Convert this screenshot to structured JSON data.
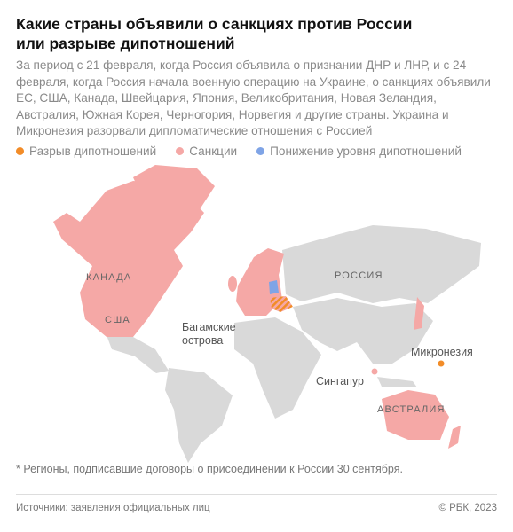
{
  "header": {
    "title": "Какие страны объявили о санкциях против России или разрыве дипотношений",
    "description": "За период с 21 февраля, когда Россия объявила о признании ДНР и ЛНР, и с 24 февраля, когда Россия начала военную операцию на Украине, о санкциях объявили ЕС, США, Канада, Швейцария, Япония, Великобритания, Новая Зеландия, Австралия, Южная Корея, Черногория, Норвегия и другие страны. Украина и Микронезия разорвали дипломатические отношения с Россией"
  },
  "legend": [
    {
      "label": "Разрыв дипотношений",
      "color": "#f28c28"
    },
    {
      "label": "Санкции",
      "color": "#f5a8a6"
    },
    {
      "label": "Понижение уровня дипотношений",
      "color": "#7fa4e6"
    }
  ],
  "map": {
    "labels": [
      "КАНАДА",
      "США",
      "Багамские острова",
      "РОССИЯ",
      "Микронезия",
      "Сингапур",
      "АВСТРАЛИЯ"
    ]
  },
  "footnote": "* Регионы, подписавшие договоры о присоединении к России 30 сентября.",
  "footer": {
    "source": "Источники: заявления официальных лиц",
    "copyright": "© РБК, 2023"
  }
}
